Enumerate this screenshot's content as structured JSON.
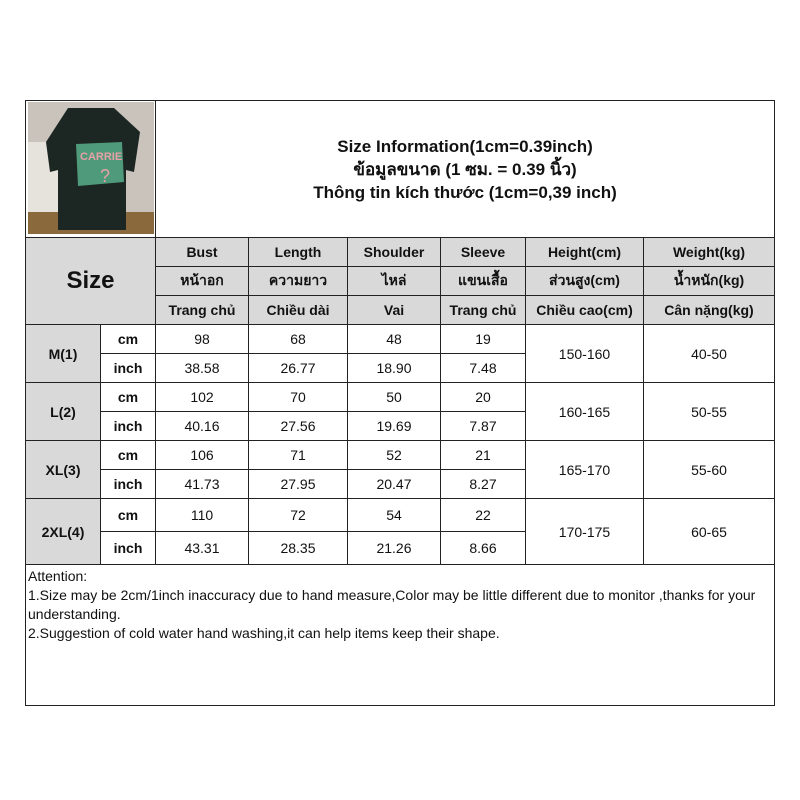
{
  "title_lines": [
    "Size Information(1cm=0.39inch)",
    "ข้อมูลขนาด (1 ซม. = 0.39 นิ้ว)",
    "Thông tin kích thước (1cm=0,39 inch)"
  ],
  "size_label": "Size",
  "photo": {
    "print_text": "CARRIE",
    "shirt_color": "#1c2623",
    "print_color": "#4f9a7a"
  },
  "headers": [
    [
      "Bust",
      "Length",
      "Shoulder",
      "Sleeve",
      "Height(cm)",
      "Weight(kg)"
    ],
    [
      "หน้าอก",
      "ความยาว",
      "ไหล่",
      "แขนเสื้อ",
      "ส่วนสูง(cm)",
      "น้ำหนัก(kg)"
    ],
    [
      "Trang chủ",
      "Chiều dài",
      "Vai",
      "Trang chủ",
      "Chiều cao(cm)",
      "Cân nặng(kg)"
    ]
  ],
  "sizes": [
    {
      "name": "M(1)",
      "cm": [
        "98",
        "68",
        "48",
        "19"
      ],
      "inch": [
        "38.58",
        "26.77",
        "18.90",
        "7.48"
      ],
      "height": "150-160",
      "weight": "40-50"
    },
    {
      "name": "L(2)",
      "cm": [
        "102",
        "70",
        "50",
        "20"
      ],
      "inch": [
        "40.16",
        "27.56",
        "19.69",
        "7.87"
      ],
      "height": "160-165",
      "weight": "50-55"
    },
    {
      "name": "XL(3)",
      "cm": [
        "106",
        "71",
        "52",
        "21"
      ],
      "inch": [
        "41.73",
        "27.95",
        "20.47",
        "8.27"
      ],
      "height": "165-170",
      "weight": "55-60"
    },
    {
      "name": "2XL(4)",
      "cm": [
        "110",
        "72",
        "54",
        "22"
      ],
      "inch": [
        "43.31",
        "28.35",
        "21.26",
        "8.66"
      ],
      "height": "170-175",
      "weight": "60-65"
    }
  ],
  "units": {
    "cm": "cm",
    "inch": "inch"
  },
  "notes": [
    "Attention:",
    "1.Size may be 2cm/1inch inaccuracy due to hand measure,Color may be little different due to monitor ,thanks for your understanding.",
    "2.Suggestion of cold water hand washing,it can help items keep their shape."
  ]
}
